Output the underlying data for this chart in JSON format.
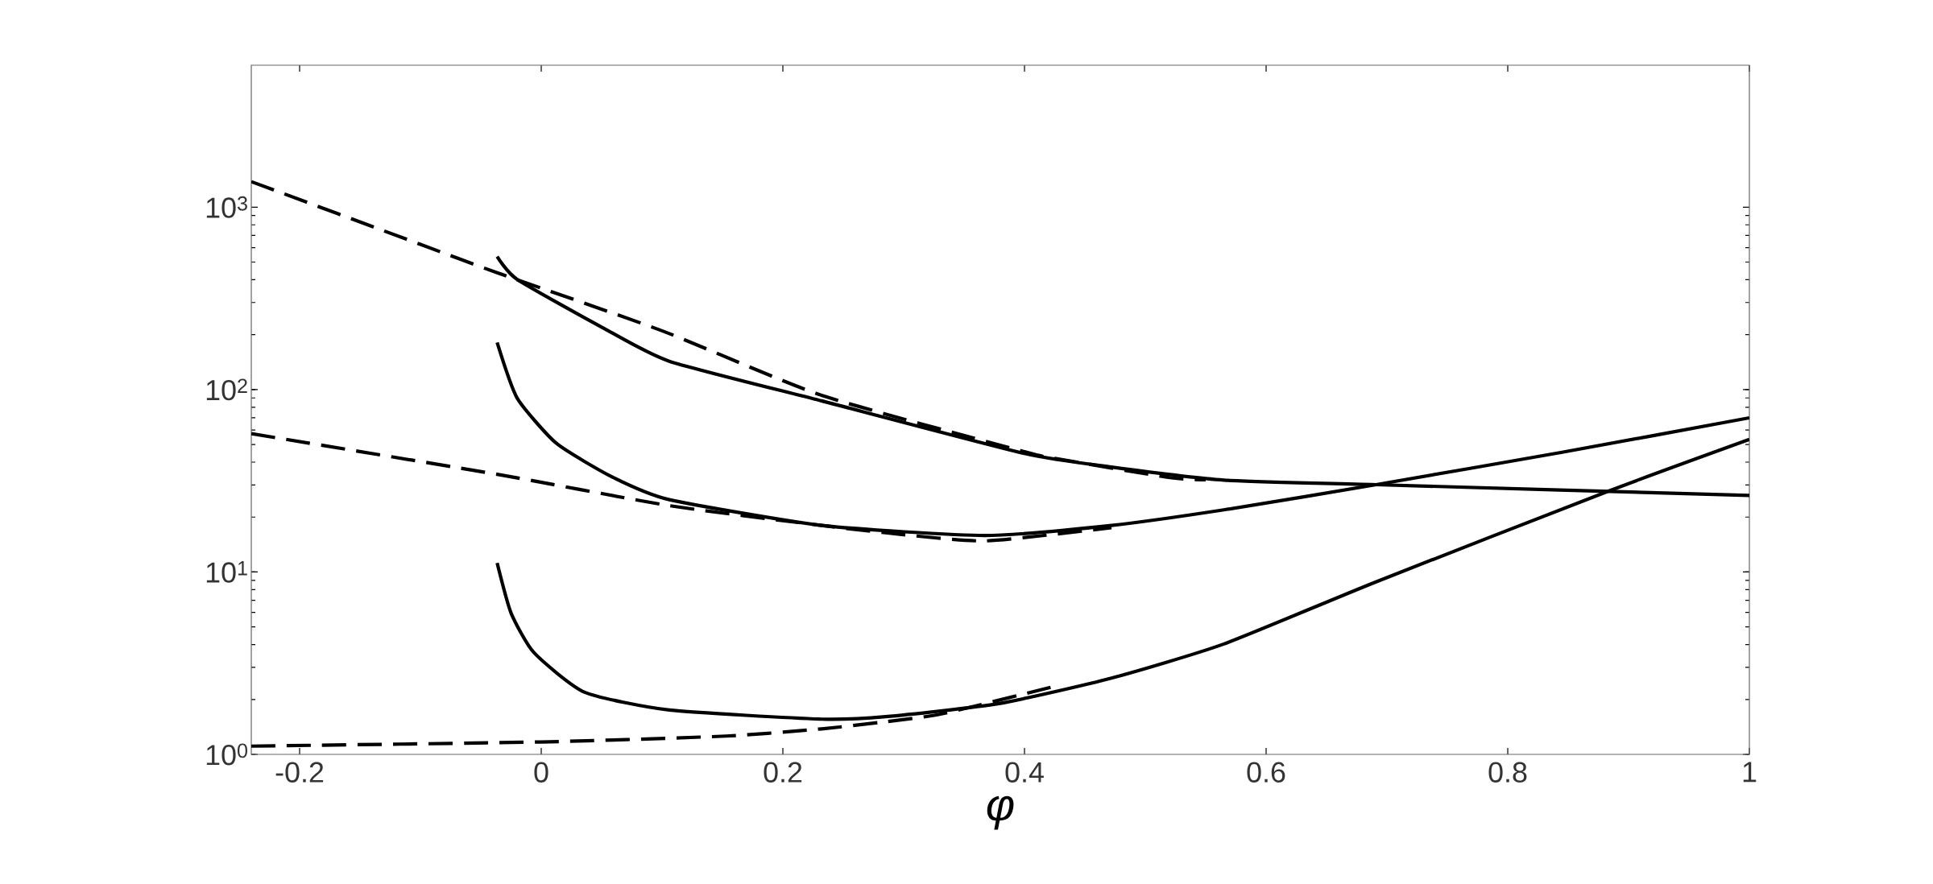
{
  "chart_data": {
    "type": "line",
    "xlabel": "φ",
    "log": "y",
    "xlim": [
      -0.24,
      1
    ],
    "ylim": [
      1,
      6000
    ],
    "xticks": [
      -0.2,
      0,
      0.2,
      0.4,
      0.6,
      0.8,
      1
    ],
    "yticks": [
      {
        "value": 1,
        "label": "10$^{0}$"
      },
      {
        "value": 10,
        "label": "10$^{1}$"
      },
      {
        "value": 100,
        "label": "10$^{2}$"
      },
      {
        "value": 1000,
        "label": "10$^{3}$"
      }
    ],
    "series": [
      {
        "color": "#000000",
        "line_style": "dashed",
        "x": [
          -0.24,
          -0.1,
          -0.0365,
          0.1,
          0.232,
          0.4,
          0.425,
          0.519,
          0.55
        ],
        "values": [
          1380,
          625,
          437,
          210,
          93,
          45.6,
          42,
          33,
          32
        ]
      },
      {
        "color": "#000000",
        "line_style": "solid",
        "x": [
          -0.0365,
          -0.02,
          0.05,
          0.106,
          0.232,
          0.4,
          0.472,
          0.565,
          0.691,
          1
        ],
        "values": [
          536,
          402,
          220,
          143,
          86.7,
          44.6,
          37.6,
          31.9,
          30.1,
          26.3
        ]
      },
      {
        "color": "#000000",
        "line_style": "dashed",
        "x": [
          -0.24,
          -0.0365,
          0.106,
          0.232,
          0.285,
          0.367,
          0.472
        ],
        "values": [
          57.3,
          34.3,
          23.1,
          18,
          16.4,
          14.8,
          17.5
        ]
      },
      {
        "color": "#000000",
        "line_style": "solid",
        "x": [
          -0.0365,
          -0.02,
          0.0126,
          0.059,
          0.106,
          0.232,
          0.367,
          0.472,
          0.565,
          0.691,
          0.845,
          1
        ],
        "values": [
          181,
          89.9,
          50.7,
          33.1,
          24.9,
          18,
          15.85,
          18,
          21.9,
          30.1,
          45.3,
          70
        ]
      },
      {
        "color": "#000000",
        "line_style": "dashed",
        "x": [
          -0.24,
          0,
          0.153,
          0.232,
          0.285,
          0.332,
          0.425
        ],
        "values": [
          1.11,
          1.17,
          1.26,
          1.38,
          1.51,
          1.67,
          2.36
        ]
      },
      {
        "color": "#000000",
        "line_style": "solid",
        "x": [
          -0.0365,
          -0.025,
          -0.006,
          0.036,
          0.106,
          0.232,
          0.285,
          0.379,
          0.472,
          0.565,
          0.691,
          0.883,
          1
        ],
        "values": [
          11.2,
          5.96,
          3.61,
          2.19,
          1.75,
          1.56,
          1.61,
          1.9,
          2.62,
          4.03,
          8.83,
          27.7,
          53.3
        ]
      }
    ]
  }
}
